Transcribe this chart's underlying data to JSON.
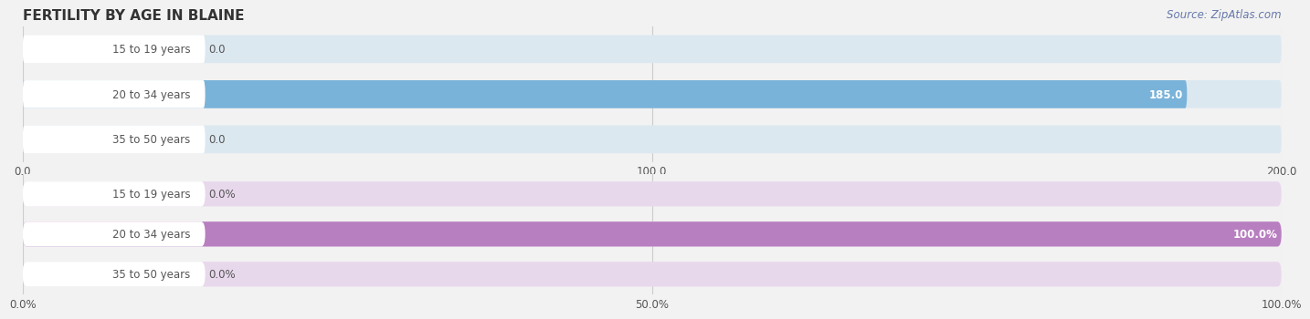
{
  "title": "FERTILITY BY AGE IN BLAINE",
  "source": "Source: ZipAtlas.com",
  "top_chart": {
    "categories": [
      "15 to 19 years",
      "20 to 34 years",
      "35 to 50 years"
    ],
    "values": [
      0.0,
      185.0,
      0.0
    ],
    "bar_color": "#7ab3d9",
    "bar_bg_color": "#dce8f0",
    "xlim": [
      0,
      200
    ],
    "xticks": [
      0.0,
      100.0,
      200.0
    ],
    "xtick_labels": [
      "0.0",
      "100.0",
      "200.0"
    ],
    "pct": false
  },
  "bottom_chart": {
    "categories": [
      "15 to 19 years",
      "20 to 34 years",
      "35 to 50 years"
    ],
    "values": [
      0.0,
      100.0,
      0.0
    ],
    "bar_color": "#b87fc0",
    "bar_bg_color": "#e8d8ec",
    "xlim": [
      0,
      100
    ],
    "xticks": [
      0.0,
      50.0,
      100.0
    ],
    "xtick_labels": [
      "0.0%",
      "50.0%",
      "100.0%"
    ],
    "pct": true
  },
  "fig_bg_color": "#f2f2f2",
  "chart_bg_color": "#f2f2f2",
  "grid_color": "#cccccc",
  "label_color": "#555555",
  "value_color": "#555555",
  "title_color": "#333333",
  "source_color": "#6677aa",
  "white": "#ffffff",
  "bar_row_bg": "#e8e8e8"
}
